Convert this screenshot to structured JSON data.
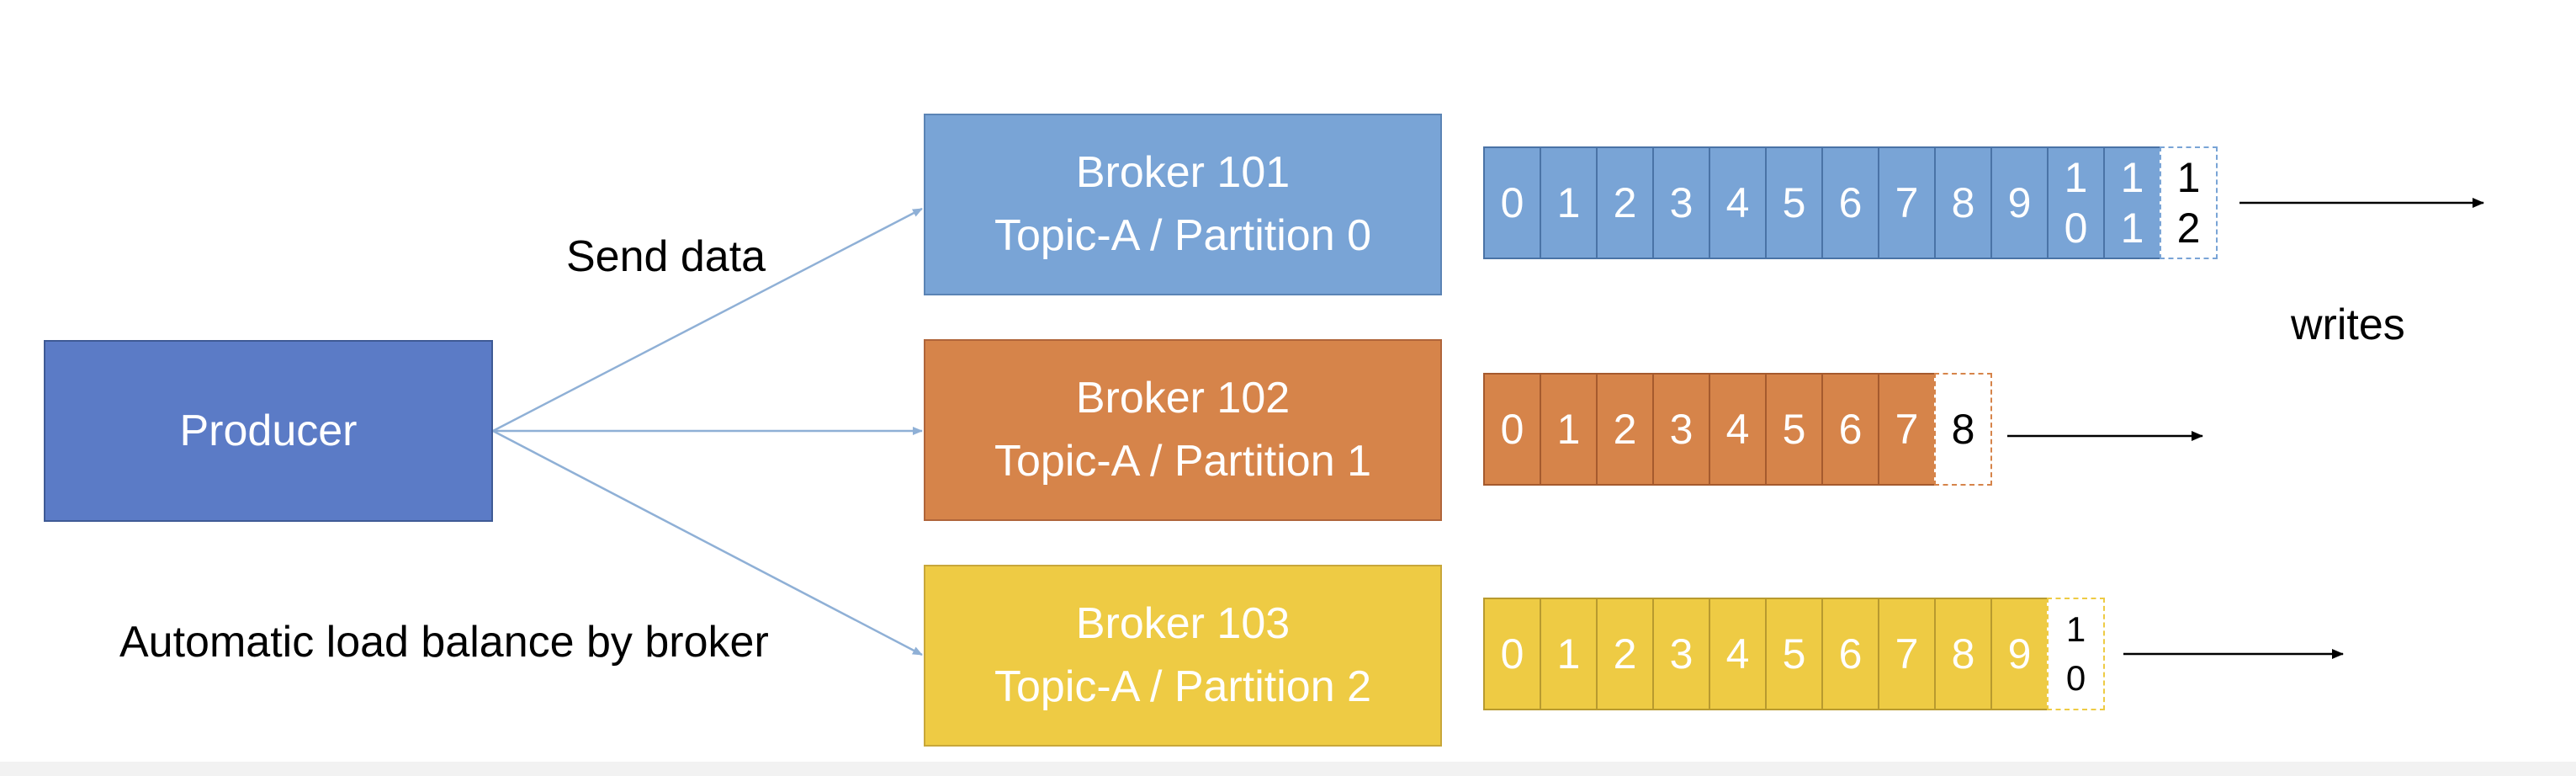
{
  "producer": {
    "label": "Producer"
  },
  "brokers": [
    {
      "name": "Broker 101",
      "partition": "Topic-A / Partition 0"
    },
    {
      "name": "Broker 102",
      "partition": "Topic-A / Partition 1"
    },
    {
      "name": "Broker 103",
      "partition": "Topic-A / Partition 2"
    }
  ],
  "annotations": {
    "send_data": "Send data",
    "load_balance": "Automatic load balance by broker",
    "writes": "writes"
  },
  "partitions": [
    {
      "offsets": [
        "0",
        "1",
        "2",
        "3",
        "4",
        "5",
        "6",
        "7",
        "8",
        "9",
        "10",
        "11"
      ],
      "next_offset": "12"
    },
    {
      "offsets": [
        "0",
        "1",
        "2",
        "3",
        "4",
        "5",
        "6",
        "7"
      ],
      "next_offset": "8"
    },
    {
      "offsets": [
        "0",
        "1",
        "2",
        "3",
        "4",
        "5",
        "6",
        "7",
        "8",
        "9"
      ],
      "next_offset": "10"
    }
  ],
  "colors": {
    "producer": "#5b7bc6",
    "partition_0": "#79a4d6",
    "partition_1": "#d6844a",
    "partition_2": "#eecb44",
    "connector": "#8fb0d6",
    "write_arrow": "#000000"
  }
}
